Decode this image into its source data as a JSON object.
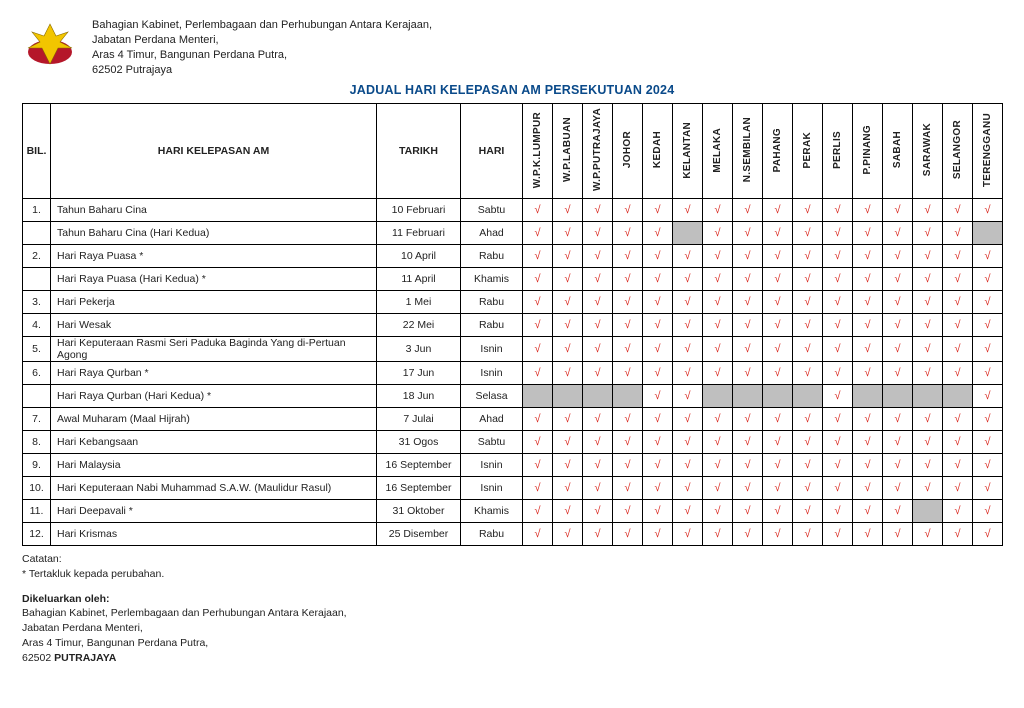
{
  "header": {
    "line1": "Bahagian Kabinet, Perlembagaan dan Perhubungan Antara Kerajaan,",
    "line2": "Jabatan Perdana Menteri,",
    "line3": "Aras 4 Timur, Bangunan Perdana Putra,",
    "line4": "62502 Putrajaya"
  },
  "title": "JADUAL HARI KELEPASAN AM PERSEKUTUAN 2024",
  "columns": {
    "bil": "BIL.",
    "name": "HARI KELEPASAN AM",
    "date": "TARIKH",
    "day": "HARI"
  },
  "states": [
    "W.P.K.LUMPUR",
    "W.P.LABUAN",
    "W.P.PUTRAJAYA",
    "JOHOR",
    "KEDAH",
    "KELANTAN",
    "MELAKA",
    "N.SEMBILAN",
    "PAHANG",
    "PERAK",
    "PERLIS",
    "P.PINANG",
    "SABAH",
    "SARAWAK",
    "SELANGOR",
    "TERENGGANU"
  ],
  "rows": [
    {
      "bil": "1.",
      "name": "Tahun Baharu Cina",
      "date": "10 Februari",
      "day": "Sabtu",
      "marks": [
        "t",
        "t",
        "t",
        "t",
        "t",
        "t",
        "t",
        "t",
        "t",
        "t",
        "t",
        "t",
        "t",
        "t",
        "t",
        "t"
      ]
    },
    {
      "bil": "",
      "sub": true,
      "name": "Tahun Baharu Cina (Hari Kedua)",
      "date": "11 Februari",
      "day": "Ahad",
      "marks": [
        "t",
        "t",
        "t",
        "t",
        "t",
        "g",
        "t",
        "t",
        "t",
        "t",
        "t",
        "t",
        "t",
        "t",
        "t",
        "g"
      ]
    },
    {
      "bil": "2.",
      "name": "Hari Raya Puasa *",
      "date": "10 April",
      "day": "Rabu",
      "marks": [
        "t",
        "t",
        "t",
        "t",
        "t",
        "t",
        "t",
        "t",
        "t",
        "t",
        "t",
        "t",
        "t",
        "t",
        "t",
        "t"
      ]
    },
    {
      "bil": "",
      "sub": true,
      "name": "Hari Raya Puasa (Hari Kedua) *",
      "date": "11 April",
      "day": "Khamis",
      "marks": [
        "t",
        "t",
        "t",
        "t",
        "t",
        "t",
        "t",
        "t",
        "t",
        "t",
        "t",
        "t",
        "t",
        "t",
        "t",
        "t"
      ]
    },
    {
      "bil": "3.",
      "name": "Hari Pekerja",
      "date": "1 Mei",
      "day": "Rabu",
      "marks": [
        "t",
        "t",
        "t",
        "t",
        "t",
        "t",
        "t",
        "t",
        "t",
        "t",
        "t",
        "t",
        "t",
        "t",
        "t",
        "t"
      ]
    },
    {
      "bil": "4.",
      "name": "Hari Wesak",
      "date": "22 Mei",
      "day": "Rabu",
      "marks": [
        "t",
        "t",
        "t",
        "t",
        "t",
        "t",
        "t",
        "t",
        "t",
        "t",
        "t",
        "t",
        "t",
        "t",
        "t",
        "t"
      ]
    },
    {
      "bil": "5.",
      "name": "Hari Keputeraan Rasmi Seri Paduka Baginda Yang di-Pertuan Agong",
      "date": "3 Jun",
      "day": "Isnin",
      "marks": [
        "t",
        "t",
        "t",
        "t",
        "t",
        "t",
        "t",
        "t",
        "t",
        "t",
        "t",
        "t",
        "t",
        "t",
        "t",
        "t"
      ]
    },
    {
      "bil": "6.",
      "name": "Hari Raya Qurban *",
      "date": "17 Jun",
      "day": "Isnin",
      "marks": [
        "t",
        "t",
        "t",
        "t",
        "t",
        "t",
        "t",
        "t",
        "t",
        "t",
        "t",
        "t",
        "t",
        "t",
        "t",
        "t"
      ]
    },
    {
      "bil": "",
      "sub": true,
      "name": "Hari Raya Qurban (Hari Kedua) *",
      "date": "18 Jun",
      "day": "Selasa",
      "marks": [
        "g",
        "g",
        "g",
        "g",
        "t",
        "t",
        "g",
        "g",
        "g",
        "g",
        "t",
        "g",
        "g",
        "g",
        "g",
        "t"
      ]
    },
    {
      "bil": "7.",
      "name": "Awal Muharam (Maal Hijrah)",
      "date": "7 Julai",
      "day": "Ahad",
      "marks": [
        "t",
        "t",
        "t",
        "t",
        "t",
        "t",
        "t",
        "t",
        "t",
        "t",
        "t",
        "t",
        "t",
        "t",
        "t",
        "t"
      ]
    },
    {
      "bil": "8.",
      "name": "Hari Kebangsaan",
      "date": "31 Ogos",
      "day": "Sabtu",
      "marks": [
        "t",
        "t",
        "t",
        "t",
        "t",
        "t",
        "t",
        "t",
        "t",
        "t",
        "t",
        "t",
        "t",
        "t",
        "t",
        "t"
      ]
    },
    {
      "bil": "9.",
      "name": "Hari Malaysia",
      "date": "16 September",
      "day": "Isnin",
      "marks": [
        "t",
        "t",
        "t",
        "t",
        "t",
        "t",
        "t",
        "t",
        "t",
        "t",
        "t",
        "t",
        "t",
        "t",
        "t",
        "t"
      ]
    },
    {
      "bil": "10.",
      "name": "Hari Keputeraan Nabi Muhammad S.A.W. (Maulidur Rasul)",
      "date": "16 September",
      "day": "Isnin",
      "marks": [
        "t",
        "t",
        "t",
        "t",
        "t",
        "t",
        "t",
        "t",
        "t",
        "t",
        "t",
        "t",
        "t",
        "t",
        "t",
        "t"
      ]
    },
    {
      "bil": "11.",
      "name": "Hari Deepavali *",
      "date": "31 Oktober",
      "day": "Khamis",
      "marks": [
        "t",
        "t",
        "t",
        "t",
        "t",
        "t",
        "t",
        "t",
        "t",
        "t",
        "t",
        "t",
        "t",
        "g",
        "t",
        "t"
      ]
    },
    {
      "bil": "12.",
      "name": "Hari Krismas",
      "date": "25 Disember",
      "day": "Rabu",
      "marks": [
        "t",
        "t",
        "t",
        "t",
        "t",
        "t",
        "t",
        "t",
        "t",
        "t",
        "t",
        "t",
        "t",
        "t",
        "t",
        "t"
      ]
    }
  ],
  "notes": {
    "heading": "Catatan:",
    "line": "*   Tertakluk kepada perubahan."
  },
  "footer": {
    "heading": "Dikeluarkan oleh:",
    "line1": "Bahagian Kabinet, Perlembagaan dan Perhubungan Antara Kerajaan,",
    "line2": "Jabatan Perdana Menteri,",
    "line3": "Aras 4 Timur, Bangunan Perdana Putra,",
    "line4a": "62502 ",
    "line4b": "PUTRAJAYA"
  },
  "tick_char": "√",
  "colors": {
    "tick": "#d9281f",
    "grey": "#bfbfbf",
    "title": "#0a4a8a",
    "border": "#000000"
  }
}
